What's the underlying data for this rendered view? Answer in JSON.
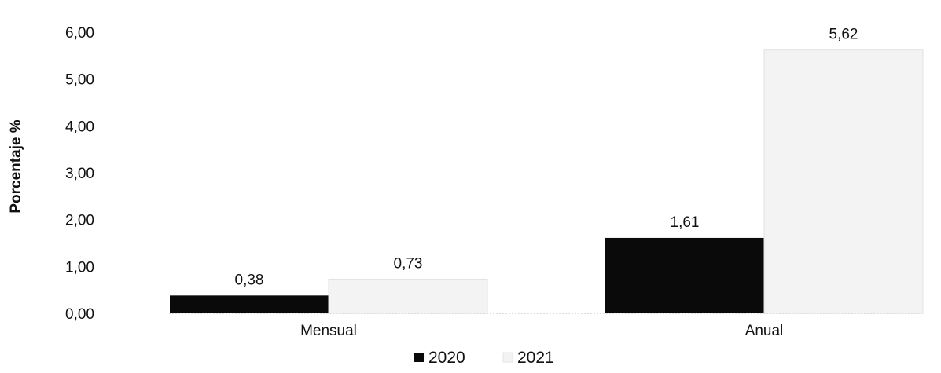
{
  "chart_data": {
    "type": "bar",
    "title": "",
    "xlabel": "",
    "ylabel": "Porcentaje %",
    "categories": [
      "Mensual",
      "Anual"
    ],
    "series": [
      {
        "name": "2020",
        "values": [
          0.38,
          1.61
        ],
        "labels": [
          "0,38",
          "1,61"
        ],
        "color": "#0a0a0a"
      },
      {
        "name": "2021",
        "values": [
          0.73,
          5.62
        ],
        "labels": [
          "0,73",
          "5,62"
        ],
        "color": "#f3f3f3"
      }
    ],
    "ylim": [
      0,
      6
    ],
    "yticks": [
      0,
      1,
      2,
      3,
      4,
      5,
      6
    ],
    "ytick_labels": [
      "0,00",
      "1,00",
      "2,00",
      "3,00",
      "4,00",
      "5,00",
      "6,00"
    ],
    "grid": false,
    "legend": {
      "position": "bottom",
      "items": [
        "2020",
        "2021"
      ]
    }
  }
}
